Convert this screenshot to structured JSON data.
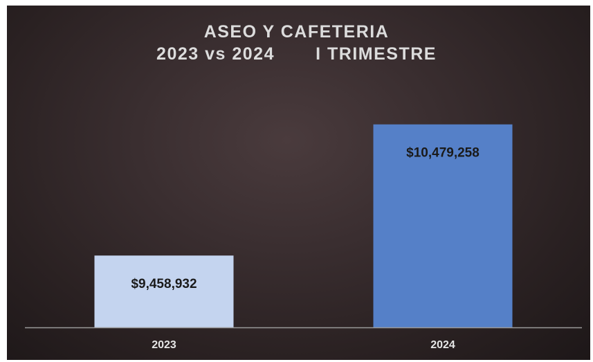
{
  "chart_data": {
    "type": "bar",
    "title": "ASEO Y CAFETERIA",
    "subtitle_left": "2023 vs 2024",
    "subtitle_right": "I TRIMESTRE",
    "categories": [
      "2023",
      "2024"
    ],
    "values": [
      9458932,
      10479258
    ],
    "data_labels": [
      "$9,458,932",
      "$10,479,258"
    ],
    "bar_colors": [
      "#c4d4ef",
      "#5580c8"
    ],
    "ylim": [
      8900000,
      10650000
    ],
    "grid": false,
    "legend": "none"
  },
  "colors": {
    "background": "#2f2526",
    "title": "#dcdcdc",
    "axis_line": "#9a9a9a",
    "tick_label": "#e6e6e6"
  }
}
